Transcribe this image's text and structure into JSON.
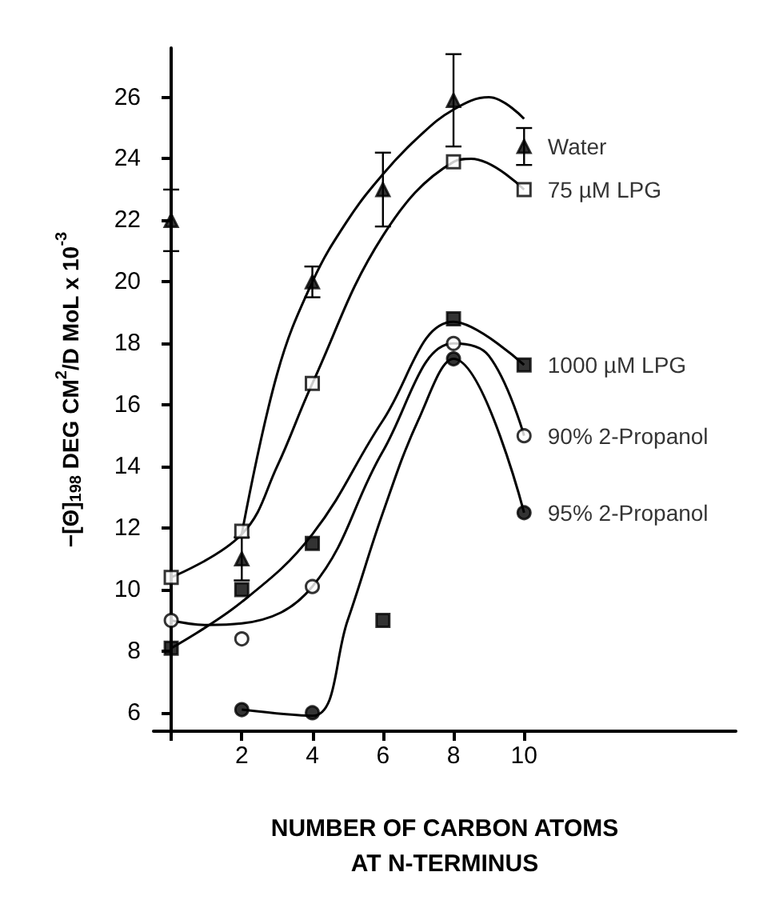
{
  "chart_data": {
    "type": "scatter",
    "xlabel": "NUMBER OF CARBON ATOMS\nAT N-TERMINUS",
    "ylabel": "−[Θ]$_{198}$ DEG CM$^{2}$/D MoL x 10$^{-3}$",
    "xlim": [
      -0.5,
      16
    ],
    "xticks": [
      {
        "value": 0,
        "label": null
      },
      2,
      4,
      6,
      8,
      10
    ],
    "ylim": [
      5.4,
      27.6
    ],
    "yticks": [
      6,
      8,
      10,
      12,
      14,
      16,
      18,
      20,
      22,
      24,
      26
    ],
    "grid": false,
    "legend": false,
    "series": [
      {
        "name": "Water",
        "color": "#000000",
        "marker": "triangle",
        "x": [
          0,
          2,
          4,
          6,
          8,
          10
        ],
        "values": [
          22.0,
          11.0,
          20.0,
          23.0,
          25.9,
          24.4
        ],
        "errors": [
          1.0,
          0.7,
          0.5,
          1.2,
          1.5,
          0.6
        ]
      },
      {
        "name": "75 µM LPG",
        "color": "#ffffff",
        "marker": "square",
        "x": [
          0,
          2,
          4,
          8,
          10
        ],
        "values": [
          10.4,
          11.9,
          16.7,
          23.9,
          23.0
        ]
      },
      {
        "name": "1000 µM LPG",
        "color": "#000000",
        "marker": "square",
        "x": [
          0,
          2,
          4,
          6,
          8,
          10
        ],
        "values": [
          8.1,
          10.0,
          11.5,
          9.0,
          18.8,
          17.3
        ]
      },
      {
        "name": "90% 2-Propanol",
        "color": "#ffffff",
        "marker": "circle",
        "x": [
          0,
          2,
          4,
          8,
          10
        ],
        "values": [
          9.0,
          8.4,
          10.1,
          18.0,
          15.0
        ]
      },
      {
        "name": "95% 2-Propanol",
        "color": "#000000",
        "marker": "circle",
        "x": [
          2,
          4,
          8,
          10
        ],
        "values": [
          6.1,
          6.0,
          17.5,
          12.5
        ]
      },
      {
        "type": "line",
        "color": "#000000",
        "marker": "none",
        "x": [
          2,
          3,
          4,
          5,
          6,
          7,
          8,
          9,
          10
        ],
        "values": [
          11.8,
          17.0,
          20.0,
          22.0,
          23.5,
          24.7,
          25.6,
          26.0,
          25.3
        ]
      },
      {
        "type": "line",
        "color": "#000000",
        "marker": "none",
        "x": [
          0,
          2,
          3,
          4,
          6,
          8,
          8.5,
          10
        ],
        "values": [
          10.4,
          11.8,
          14.0,
          16.7,
          21.5,
          23.9,
          24.0,
          23.0
        ]
      },
      {
        "type": "line",
        "color": "#000000",
        "marker": "none",
        "x": [
          0,
          2,
          4,
          6,
          8,
          10
        ],
        "values": [
          8.1,
          9.6,
          11.8,
          15.5,
          18.7,
          17.3
        ]
      },
      {
        "type": "line",
        "color": "#000000",
        "marker": "none",
        "x": [
          0,
          1,
          2,
          4,
          6,
          8,
          9,
          10
        ],
        "values": [
          9.0,
          8.85,
          8.9,
          10.1,
          14.5,
          18.0,
          17.6,
          15.0
        ]
      },
      {
        "type": "line",
        "color": "#000000",
        "marker": "none",
        "x": [
          2,
          4,
          5,
          6,
          7,
          8,
          10
        ],
        "values": [
          6.1,
          5.9,
          9.0,
          12.5,
          15.5,
          17.5,
          12.5
        ]
      }
    ]
  }
}
